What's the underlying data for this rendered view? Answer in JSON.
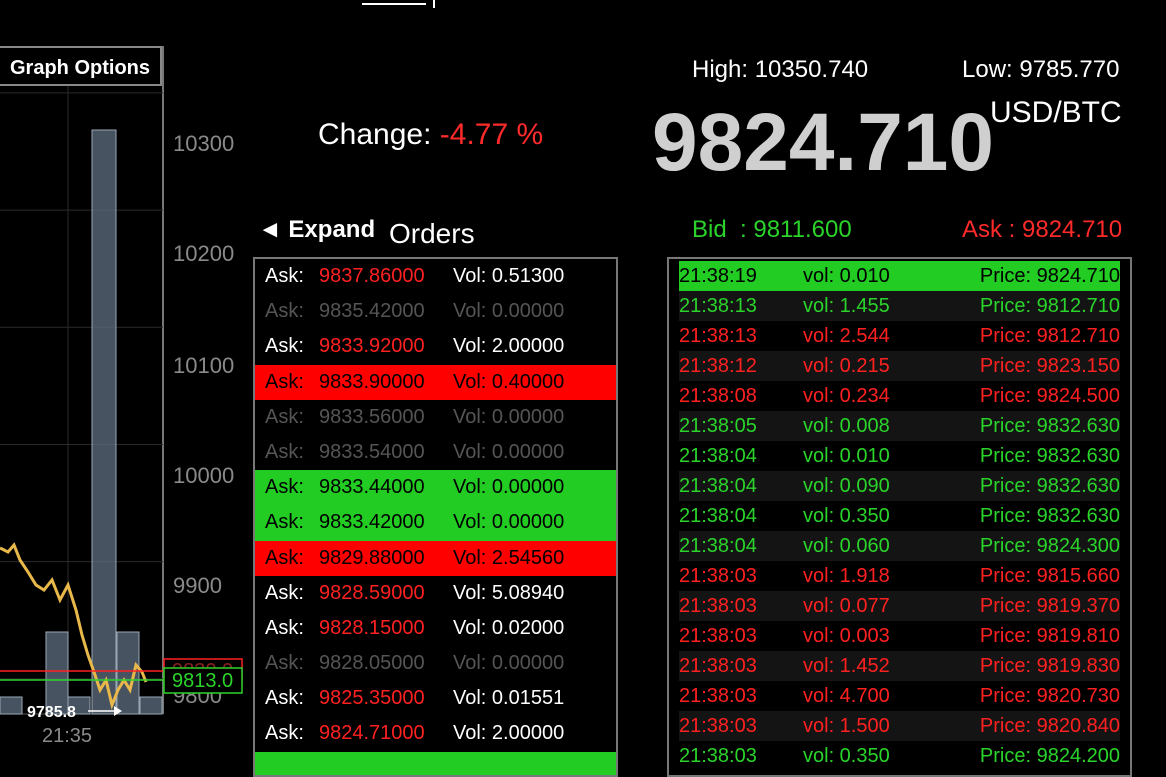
{
  "header": {
    "change_label": "Change:",
    "change_value": "-4.77 %",
    "high": "High: 10350.740",
    "low": "Low: 9785.770",
    "last_price": "9824.710",
    "pair": "USD/BTC",
    "bid": "Bid  : 9811.600",
    "ask": "Ask : 9824.710"
  },
  "graph_options_label": "Graph Options",
  "expand_label": "◄ Expand",
  "orders_title": "Orders",
  "chart_data": {
    "type": "line",
    "y_ticks": [
      "10300",
      "10200",
      "10100",
      "10000",
      "9900",
      "9800"
    ],
    "x_ticks": [
      "21:35"
    ],
    "y_range": [
      9770,
      10340
    ],
    "min_marker": "9785.8",
    "partial_label": "9830.0",
    "current_label": "9813.0",
    "line_color": "#e8b84a",
    "volume_color": "#7f8fa0"
  },
  "orders": [
    {
      "label": "Ask:",
      "price": "9837.86000",
      "vol": "Vol: 0.51300",
      "state": "normal"
    },
    {
      "label": "Ask:",
      "price": "9835.42000",
      "vol": "Vol: 0.00000",
      "state": "dim"
    },
    {
      "label": "Ask:",
      "price": "9833.92000",
      "vol": "Vol: 2.00000",
      "state": "normal"
    },
    {
      "label": "Ask:",
      "price": "9833.90000",
      "vol": "Vol: 0.40000",
      "state": "red"
    },
    {
      "label": "Ask:",
      "price": "9833.56000",
      "vol": "Vol: 0.00000",
      "state": "dim"
    },
    {
      "label": "Ask:",
      "price": "9833.54000",
      "vol": "Vol: 0.00000",
      "state": "dim"
    },
    {
      "label": "Ask:",
      "price": "9833.44000",
      "vol": "Vol: 0.00000",
      "state": "green"
    },
    {
      "label": "Ask:",
      "price": "9833.42000",
      "vol": "Vol: 0.00000",
      "state": "green"
    },
    {
      "label": "Ask:",
      "price": "9829.88000",
      "vol": "Vol: 2.54560",
      "state": "red"
    },
    {
      "label": "Ask:",
      "price": "9828.59000",
      "vol": "Vol: 5.08940",
      "state": "normal"
    },
    {
      "label": "Ask:",
      "price": "9828.15000",
      "vol": "Vol: 0.02000",
      "state": "normal"
    },
    {
      "label": "Ask:",
      "price": "9828.05000",
      "vol": "Vol: 0.00000",
      "state": "dim"
    },
    {
      "label": "Ask:",
      "price": "9825.35000",
      "vol": "Vol: 0.01551",
      "state": "normal"
    },
    {
      "label": "Ask:",
      "price": "9824.71000",
      "vol": "Vol: 2.00000",
      "state": "normal"
    },
    {
      "label": "",
      "price": "",
      "vol": "",
      "state": "green"
    }
  ],
  "trades": [
    {
      "time": "21:38:19",
      "vol": "vol: 0.010",
      "price": "Price: 9824.710",
      "side": "buy",
      "highlight": true
    },
    {
      "time": "21:38:13",
      "vol": "vol: 1.455",
      "price": "Price: 9812.710",
      "side": "buy"
    },
    {
      "time": "21:38:13",
      "vol": "vol: 2.544",
      "price": "Price: 9812.710",
      "side": "sell"
    },
    {
      "time": "21:38:12",
      "vol": "vol: 0.215",
      "price": "Price: 9823.150",
      "side": "sell"
    },
    {
      "time": "21:38:08",
      "vol": "vol: 0.234",
      "price": "Price: 9824.500",
      "side": "sell"
    },
    {
      "time": "21:38:05",
      "vol": "vol: 0.008",
      "price": "Price: 9832.630",
      "side": "buy"
    },
    {
      "time": "21:38:04",
      "vol": "vol: 0.010",
      "price": "Price: 9832.630",
      "side": "buy"
    },
    {
      "time": "21:38:04",
      "vol": "vol: 0.090",
      "price": "Price: 9832.630",
      "side": "buy"
    },
    {
      "time": "21:38:04",
      "vol": "vol: 0.350",
      "price": "Price: 9832.630",
      "side": "buy"
    },
    {
      "time": "21:38:04",
      "vol": "vol: 0.060",
      "price": "Price: 9824.300",
      "side": "buy"
    },
    {
      "time": "21:38:03",
      "vol": "vol: 1.918",
      "price": "Price: 9815.660",
      "side": "sell"
    },
    {
      "time": "21:38:03",
      "vol": "vol: 0.077",
      "price": "Price: 9819.370",
      "side": "sell"
    },
    {
      "time": "21:38:03",
      "vol": "vol: 0.003",
      "price": "Price: 9819.810",
      "side": "sell"
    },
    {
      "time": "21:38:03",
      "vol": "vol: 1.452",
      "price": "Price: 9819.830",
      "side": "sell"
    },
    {
      "time": "21:38:03",
      "vol": "vol: 4.700",
      "price": "Price: 9820.730",
      "side": "sell"
    },
    {
      "time": "21:38:03",
      "vol": "vol: 1.500",
      "price": "Price: 9820.840",
      "side": "sell"
    },
    {
      "time": "21:38:03",
      "vol": "vol: 0.350",
      "price": "Price: 9824.200",
      "side": "buy"
    }
  ]
}
